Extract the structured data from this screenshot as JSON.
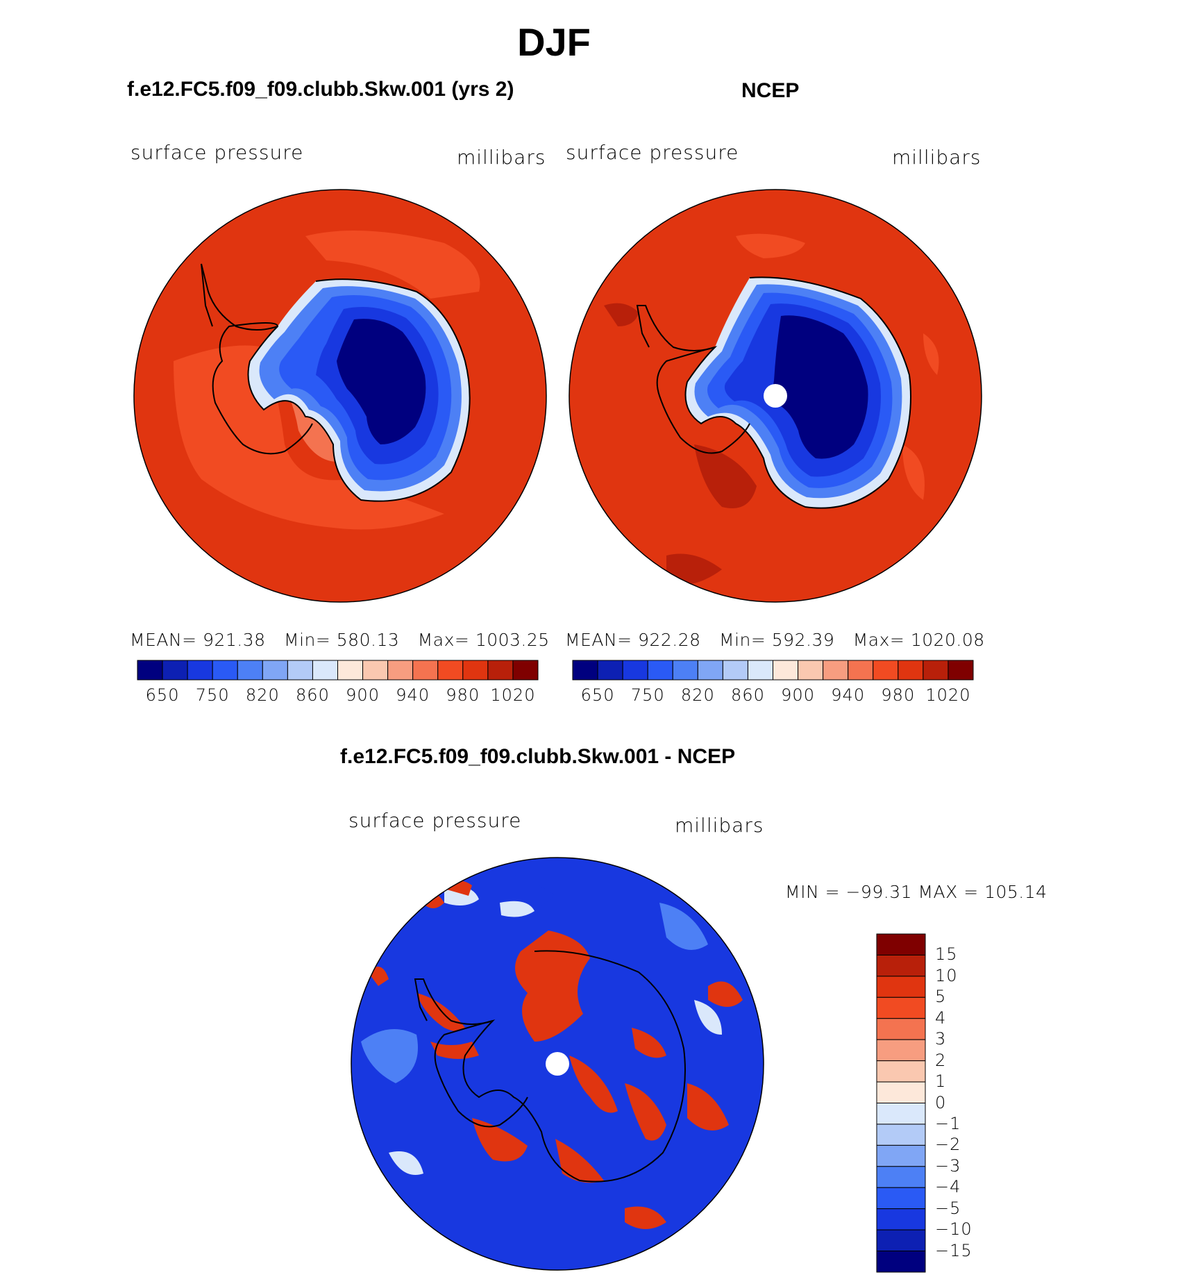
{
  "figure": {
    "title": "DJF"
  },
  "panels": {
    "model": {
      "title": "f.e12.FC5.f09_f09.clubb.Skw.001 (yrs 2)",
      "variable": "surface pressure",
      "units": "millibars",
      "stats": {
        "mean_label": "MEAN=",
        "mean": "921.38",
        "min_label": "Min=",
        "min": "580.13",
        "max_label": "Max=",
        "max": "1003.25"
      }
    },
    "obs": {
      "title": "NCEP",
      "variable": "surface pressure",
      "units": "millibars",
      "stats": {
        "mean_label": "MEAN=",
        "mean": "922.28",
        "min_label": "Min=",
        "min": "592.39",
        "max_label": "Max=",
        "max": "1020.08"
      }
    },
    "diff": {
      "title": "f.e12.FC5.f09_f09.clubb.Skw.001 - NCEP",
      "variable": "surface pressure",
      "units": "millibars",
      "minmax": "MIN = −99.31  MAX = 105.14"
    }
  },
  "colorbar_main": {
    "colors": [
      "#00007f",
      "#0d20b3",
      "#1838e0",
      "#2a5af5",
      "#4d80f5",
      "#80a6f5",
      "#b3cbf7",
      "#dae8fb",
      "#fde8da",
      "#fac8b0",
      "#f79d80",
      "#f47350",
      "#f14b22",
      "#e03510",
      "#b8200a",
      "#7f0000"
    ],
    "tick_labels": [
      "650",
      "750",
      "820",
      "860",
      "900",
      "940",
      "980",
      "1020"
    ]
  },
  "colorbar_diff": {
    "colors": [
      "#7f0000",
      "#b8200a",
      "#e03510",
      "#f14b22",
      "#f47350",
      "#f79d80",
      "#fac8b0",
      "#fde8da",
      "#dae8fb",
      "#b3cbf7",
      "#80a6f5",
      "#4d80f5",
      "#2a5af5",
      "#1838e0",
      "#0d20b3",
      "#00007f"
    ],
    "tick_labels": [
      "15",
      "10",
      "5",
      "4",
      "3",
      "2",
      "1",
      "0",
      "−1",
      "−2",
      "−3",
      "−4",
      "−5",
      "−10",
      "−15"
    ]
  },
  "map_colors": {
    "ocean_model": "#e03510",
    "ocean_alt": "#f14b22",
    "coast_warm": "#f47350",
    "light": "#dae8fb",
    "mid_blue": "#4d80f5",
    "blue": "#2a5af5",
    "deep_blue": "#1838e0",
    "core": "#00007f",
    "dark_red": "#b8200a",
    "diff_bg": "#1838e0",
    "diff_red": "#e03510"
  }
}
